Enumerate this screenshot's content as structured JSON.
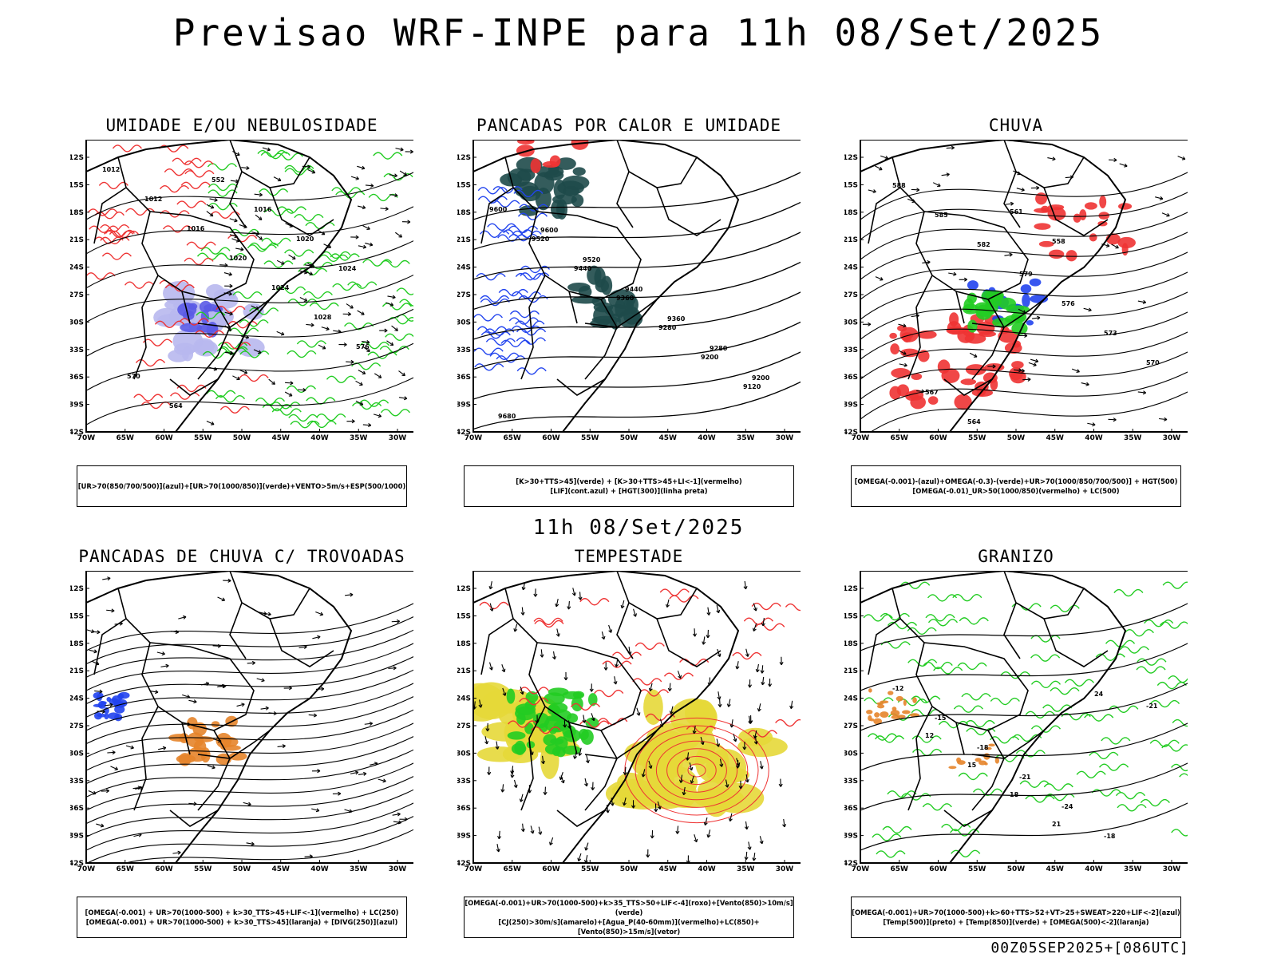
{
  "header": {
    "title": "Previsao WRF-INPE  para 11h 08/Set/2025"
  },
  "mid_date": "11h 08/Set/2025",
  "footer": "00Z05SEP2025+[086UTC]",
  "axes": {
    "lat_ticks": [
      "12S",
      "15S",
      "18S",
      "21S",
      "24S",
      "27S",
      "30S",
      "33S",
      "36S",
      "39S",
      "42S"
    ],
    "lon_ticks": [
      "70W",
      "65W",
      "60W",
      "55W",
      "50W",
      "45W",
      "40W",
      "35W",
      "30W"
    ]
  },
  "panels": [
    {
      "title": "UMIDADE E/OU NEBULOSIDADE",
      "legend": [
        "[UR>70(850/700/500)](azul)+[UR>70(1000/850)](verde)+VENTO>5m/s+ESP(500/1000)"
      ],
      "contour_labels": [
        "1012",
        "1012",
        "1016",
        "1020",
        "1024",
        "1028",
        "576",
        "570",
        "564",
        "552",
        "1016",
        "1020",
        "1024"
      ],
      "colors": {
        "primary": "#5a5ae6",
        "secondary": "#22cc22",
        "accent": "#ee3333"
      }
    },
    {
      "title": "PANCADAS POR CALOR E UMIDADE",
      "legend": [
        "[K>30+TTS>45](verde) + [K>30+TTS>45+LI<-1](vermelho)",
        "[LIF](cont.azul) + [HGT(300)](linha preta)"
      ],
      "contour_labels": [
        "9600",
        "9520",
        "9440",
        "9360",
        "9280",
        "9200",
        "9120",
        "9680",
        "9600",
        "9520",
        "9440",
        "9360",
        "9280",
        "9200"
      ],
      "colors": {
        "primary": "#1e4a4a",
        "secondary": "#2244ee",
        "accent": "#ee3333"
      }
    },
    {
      "title": "CHUVA",
      "legend": [
        "[OMEGA(-0.001)-(azul)+OMEGA(-0.3)-(verde)+UR>70(1000/850/700/500)] + HGT(500)",
        "[OMEGA(-0.01)_UR>50(1000/850)(vermelho) + LC(500)"
      ],
      "contour_labels": [
        "588",
        "585",
        "582",
        "579",
        "576",
        "573",
        "570",
        "567",
        "564",
        "561",
        "558"
      ],
      "colors": {
        "primary": "#22cc22",
        "secondary": "#2244ee",
        "accent": "#ee3333"
      }
    },
    {
      "title": "PANCADAS DE CHUVA C/ TROVOADAS",
      "legend": [
        "[OMEGA(-0.001) + UR>70(1000-500) + k>30_TTS>45+LIF<-1](vermelho) + LC(250)",
        "[OMEGA(-0.001) + UR>70(1000-500) + k>30_TTS>45](laranja) + [DIVG(250)](azul)"
      ],
      "contour_labels": [],
      "colors": {
        "primary": "#e6842a",
        "secondary": "#2244ee",
        "accent": "#ee3333"
      }
    },
    {
      "title": "TEMPESTADE",
      "legend": [
        "[OMEGA(-0.001)+UR>70(1000-500)+k>35_TTS>50+LIF<-4](roxo)+[Vento(850)>10m/s](verde)",
        "[CJ(250)>30m/s](amarelo)+[Agua_P(40-60mm)](vermelho)+LC(850)+[Vento(850)>15m/s](vetor)"
      ],
      "contour_labels": [],
      "colors": {
        "primary": "#e6d838",
        "secondary": "#22cc22",
        "accent": "#ee3333"
      }
    },
    {
      "title": "GRANIZO",
      "legend": [
        "[OMEGA(-0.001)+UR>70(1000-500)+k>60+TTS>52+VT>25+SWEAT>220+LIF<-2](azul)",
        "[Temp(500)](preto) + [Temp(850)](verde) + [OMEGA(500)<-2](laranja)"
      ],
      "contour_labels": [
        "-12",
        "-15",
        "-18",
        "-21",
        "-24",
        "-18",
        "-21",
        "12",
        "15",
        "18",
        "21",
        "24"
      ],
      "colors": {
        "primary": "#22cc22",
        "secondary": "#e6842a",
        "accent": "#000000"
      }
    }
  ]
}
